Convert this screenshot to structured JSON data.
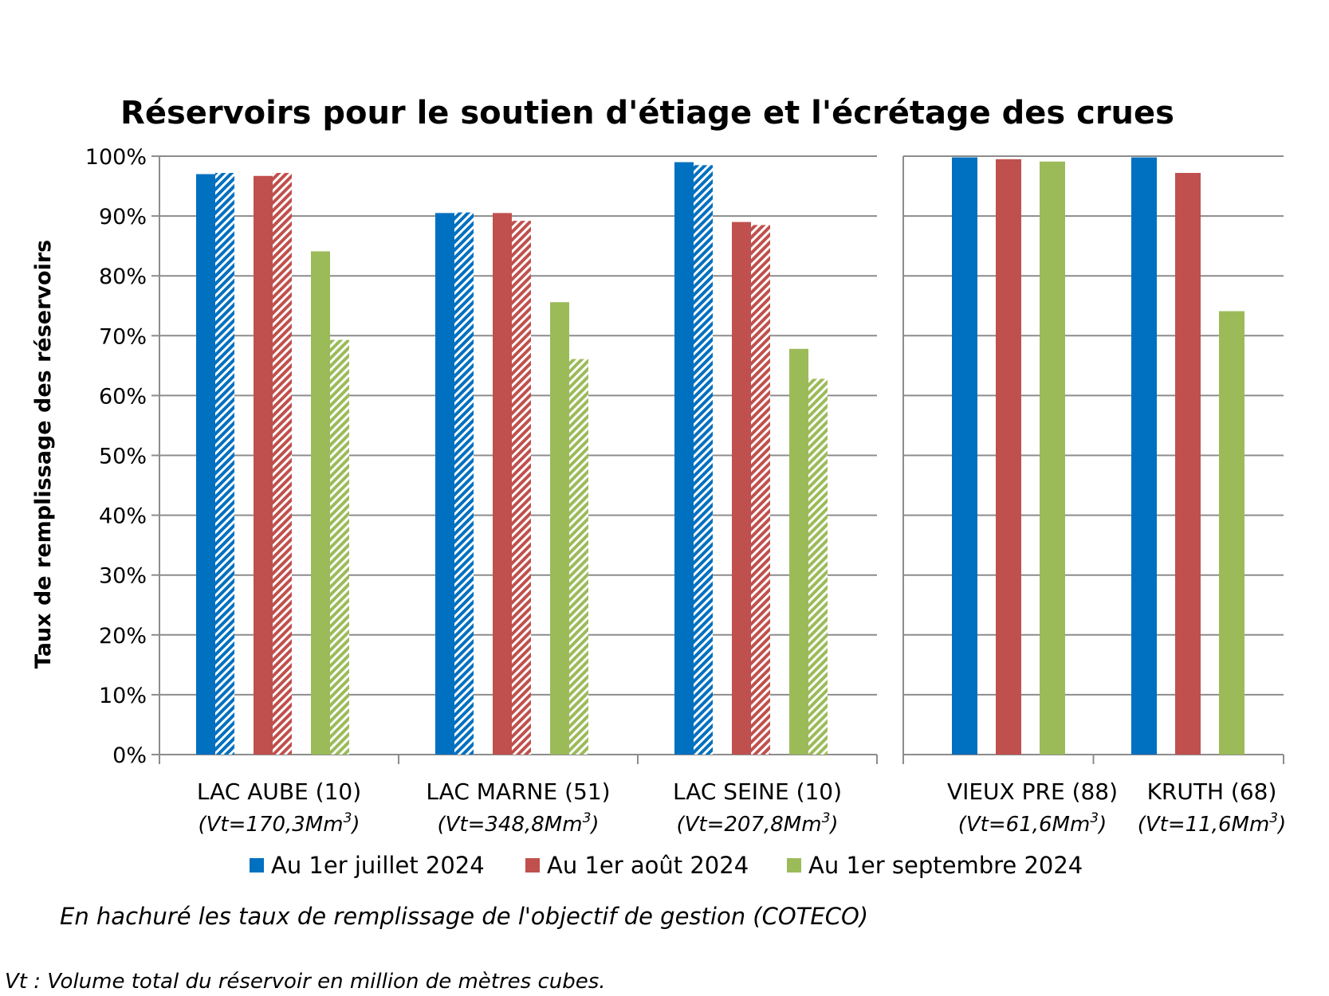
{
  "chart_data": {
    "type": "bar",
    "title": "Réservoirs pour le soutien d'étiage et l'écrétage des crues",
    "ylabel": "Taux de remplissage des réservoirs",
    "xlabel": "",
    "ylim": [
      0,
      100
    ],
    "yticks": [
      "0%",
      "10%",
      "20%",
      "30%",
      "40%",
      "50%",
      "60%",
      "70%",
      "80%",
      "90%",
      "100%"
    ],
    "grid": true,
    "legend_position": "bottom",
    "categories": [
      {
        "label": "LAC AUBE (10)",
        "vt_prefix": "(Vt=170,3Mm",
        "vt_sup": "3",
        "vt_suffix": ")"
      },
      {
        "label": "LAC MARNE (51)",
        "vt_prefix": "(Vt=348,8Mm",
        "vt_sup": "3",
        "vt_suffix": ")"
      },
      {
        "label": "LAC SEINE (10)",
        "vt_prefix": "(Vt=207,8Mm",
        "vt_sup": "3",
        "vt_suffix": ")"
      },
      {
        "label": "VIEUX PRE (88)",
        "vt_prefix": "(Vt=61,6Mm",
        "vt_sup": "3",
        "vt_suffix": ")"
      },
      {
        "label": "KRUTH (68)",
        "vt_prefix": "(Vt=11,6Mm",
        "vt_sup": "3",
        "vt_suffix": ")"
      }
    ],
    "series": [
      {
        "name": "Au 1er juillet 2024",
        "color": "#0070C0",
        "values": [
          97,
          90.5,
          99,
          99.8,
          99.8
        ],
        "objective": [
          97.2,
          90.6,
          98.5,
          null,
          null
        ]
      },
      {
        "name": "Au 1er août 2024",
        "color": "#C0504D",
        "values": [
          96.7,
          90.5,
          89,
          99.5,
          97.2
        ],
        "objective": [
          97.2,
          89.2,
          88.5,
          null,
          null
        ]
      },
      {
        "name": "Au 1er septembre 2024",
        "color": "#9BBB59",
        "values": [
          84.1,
          75.6,
          67.8,
          99.1,
          74.1
        ],
        "objective": [
          69.3,
          66.1,
          62.8,
          null,
          null
        ]
      }
    ]
  },
  "note": "En hachuré les taux de remplissage de l'objectif de gestion (COTECO)",
  "footnote": "Vt : Volume total du réservoir en million de mètres cubes."
}
